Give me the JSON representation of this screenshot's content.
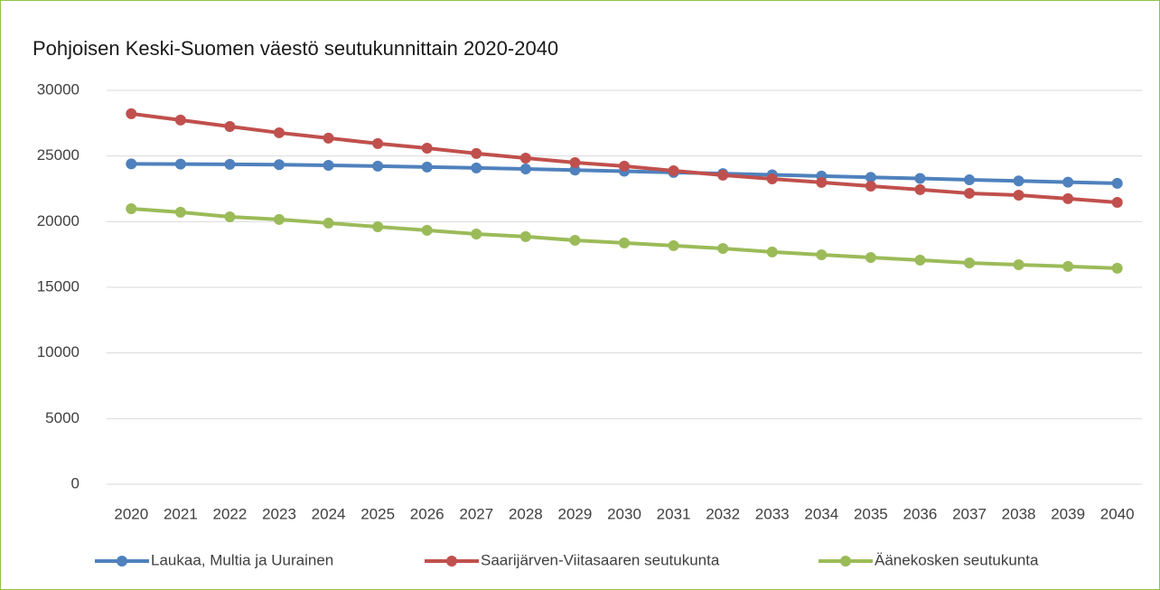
{
  "chart_data": {
    "type": "line",
    "title": "Pohjoisen Keski-Suomen väestö seutukunnittain 2020-2040",
    "categories": [
      "2020",
      "2021",
      "2022",
      "2023",
      "2024",
      "2025",
      "2026",
      "2027",
      "2028",
      "2029",
      "2030",
      "2031",
      "2032",
      "2033",
      "2034",
      "2035",
      "2036",
      "2037",
      "2038",
      "2039",
      "2040"
    ],
    "series": [
      {
        "name": "Laukaa, Multia ja Uurainen",
        "color": "#4f81bd",
        "values": [
          24400,
          24380,
          24370,
          24340,
          24290,
          24230,
          24160,
          24090,
          24010,
          23930,
          23840,
          23750,
          23660,
          23570,
          23470,
          23380,
          23290,
          23190,
          23100,
          23010,
          22920
        ]
      },
      {
        "name": "Saarijärven-Viitasaaren seutukunta",
        "color": "#c0504d",
        "values": [
          28220,
          27740,
          27250,
          26770,
          26360,
          25950,
          25600,
          25190,
          24840,
          24500,
          24230,
          23880,
          23540,
          23260,
          22990,
          22710,
          22440,
          22160,
          22020,
          21750,
          21470
        ]
      },
      {
        "name": "Äänekosken seutukunta",
        "color": "#9bbb59",
        "values": [
          20990,
          20720,
          20370,
          20170,
          19890,
          19610,
          19340,
          19060,
          18860,
          18580,
          18380,
          18170,
          17960,
          17690,
          17480,
          17270,
          17070,
          16860,
          16720,
          16590,
          16450
        ]
      }
    ],
    "ylim": [
      0,
      30000
    ],
    "yticks": [
      0,
      5000,
      10000,
      15000,
      20000,
      25000,
      30000
    ],
    "grid": true,
    "legend": "bottom"
  }
}
